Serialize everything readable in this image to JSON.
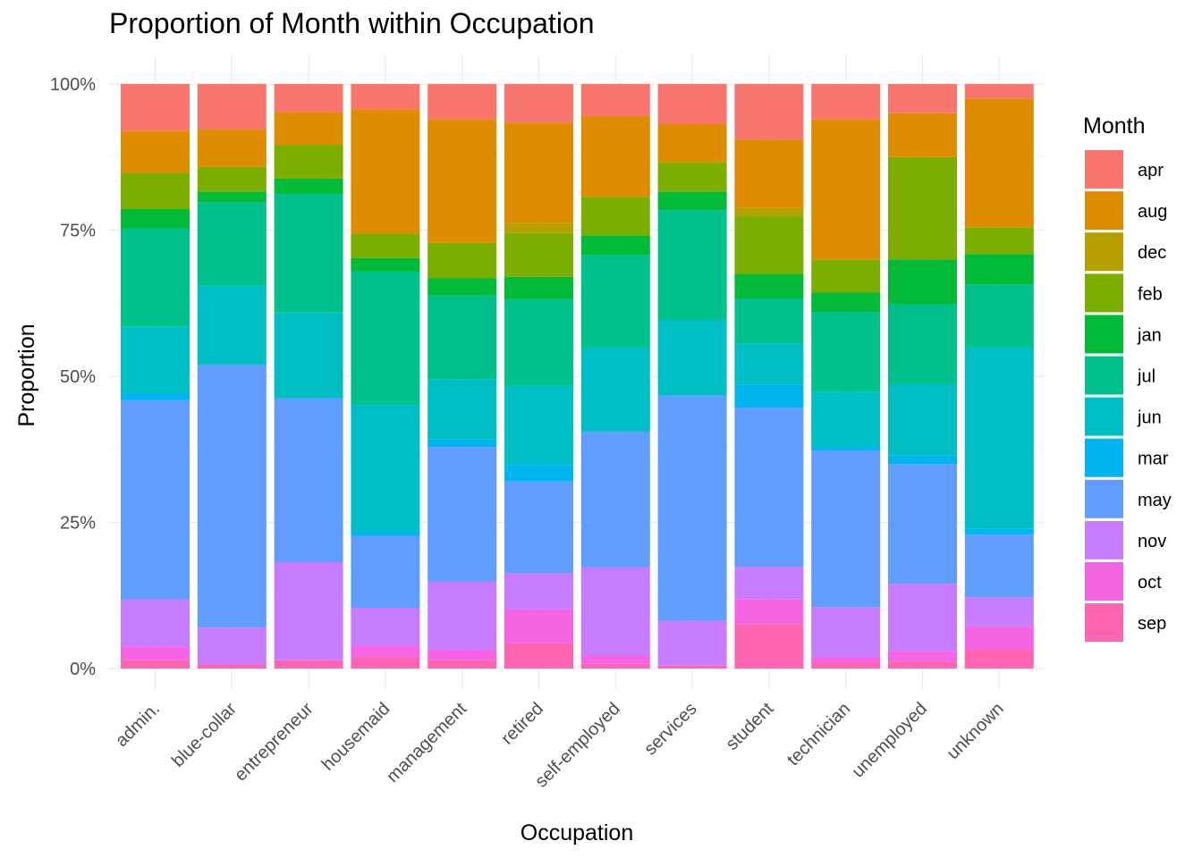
{
  "chart_data": {
    "type": "bar",
    "stacked": "proportion",
    "title": "Proportion of Month within Occupation",
    "xlabel": "Occupation",
    "ylabel": "Proportion",
    "ylim": [
      0,
      1
    ],
    "y_ticks": [
      0,
      0.25,
      0.5,
      0.75,
      1.0
    ],
    "y_tick_labels": [
      "0%",
      "25%",
      "50%",
      "75%",
      "100%"
    ],
    "grid": true,
    "legend": {
      "title": "Month",
      "placement": "right"
    },
    "categories": [
      "admin.",
      "blue-collar",
      "entrepreneur",
      "housemaid",
      "management",
      "retired",
      "self-employed",
      "services",
      "student",
      "technician",
      "unemployed",
      "unknown"
    ],
    "series": [
      {
        "name": "apr",
        "color": "#F8766D",
        "values": [
          0.08,
          0.078,
          0.048,
          0.043,
          0.06,
          0.066,
          0.055,
          0.068,
          0.095,
          0.06,
          0.05,
          0.025
        ]
      },
      {
        "name": "aug",
        "color": "#DE8C00",
        "values": [
          0.072,
          0.064,
          0.056,
          0.213,
          0.212,
          0.172,
          0.138,
          0.066,
          0.117,
          0.24,
          0.075,
          0.22
        ]
      },
      {
        "name": "dec",
        "color": "#B79F00",
        "values": [
          0.0,
          0.0,
          0.0,
          0.0,
          0.0,
          0.017,
          0.0,
          0.0,
          0.013,
          0.0,
          0.0,
          0.0
        ]
      },
      {
        "name": "feb",
        "color": "#7CAE00",
        "values": [
          0.062,
          0.042,
          0.058,
          0.042,
          0.06,
          0.075,
          0.066,
          0.05,
          0.1,
          0.057,
          0.175,
          0.046
        ]
      },
      {
        "name": "jan",
        "color": "#00BA38",
        "values": [
          0.033,
          0.018,
          0.026,
          0.023,
          0.03,
          0.038,
          0.034,
          0.032,
          0.042,
          0.033,
          0.077,
          0.052
        ]
      },
      {
        "name": "jul",
        "color": "#00C08B",
        "values": [
          0.168,
          0.143,
          0.203,
          0.228,
          0.143,
          0.148,
          0.158,
          0.187,
          0.077,
          0.137,
          0.136,
          0.108
        ]
      },
      {
        "name": "jun",
        "color": "#00BFC4",
        "values": [
          0.114,
          0.135,
          0.147,
          0.217,
          0.103,
          0.136,
          0.143,
          0.13,
          0.07,
          0.093,
          0.122,
          0.31
        ]
      },
      {
        "name": "mar",
        "color": "#00B4F0",
        "values": [
          0.012,
          0.0,
          0.0,
          0.007,
          0.013,
          0.028,
          0.0,
          0.0,
          0.04,
          0.007,
          0.015,
          0.01
        ]
      },
      {
        "name": "may",
        "color": "#619CFF",
        "values": [
          0.341,
          0.45,
          0.28,
          0.123,
          0.23,
          0.157,
          0.233,
          0.385,
          0.272,
          0.268,
          0.205,
          0.107
        ]
      },
      {
        "name": "nov",
        "color": "#C77CFF",
        "values": [
          0.08,
          0.063,
          0.168,
          0.065,
          0.117,
          0.062,
          0.15,
          0.077,
          0.055,
          0.085,
          0.115,
          0.05
        ]
      },
      {
        "name": "oct",
        "color": "#F564E3",
        "values": [
          0.024,
          0.0,
          0.0,
          0.02,
          0.018,
          0.058,
          0.015,
          0.0,
          0.043,
          0.01,
          0.018,
          0.04
        ]
      },
      {
        "name": "sep",
        "color": "#FF64B0",
        "values": [
          0.014,
          0.007,
          0.014,
          0.019,
          0.014,
          0.043,
          0.008,
          0.005,
          0.076,
          0.01,
          0.012,
          0.032
        ]
      }
    ]
  }
}
